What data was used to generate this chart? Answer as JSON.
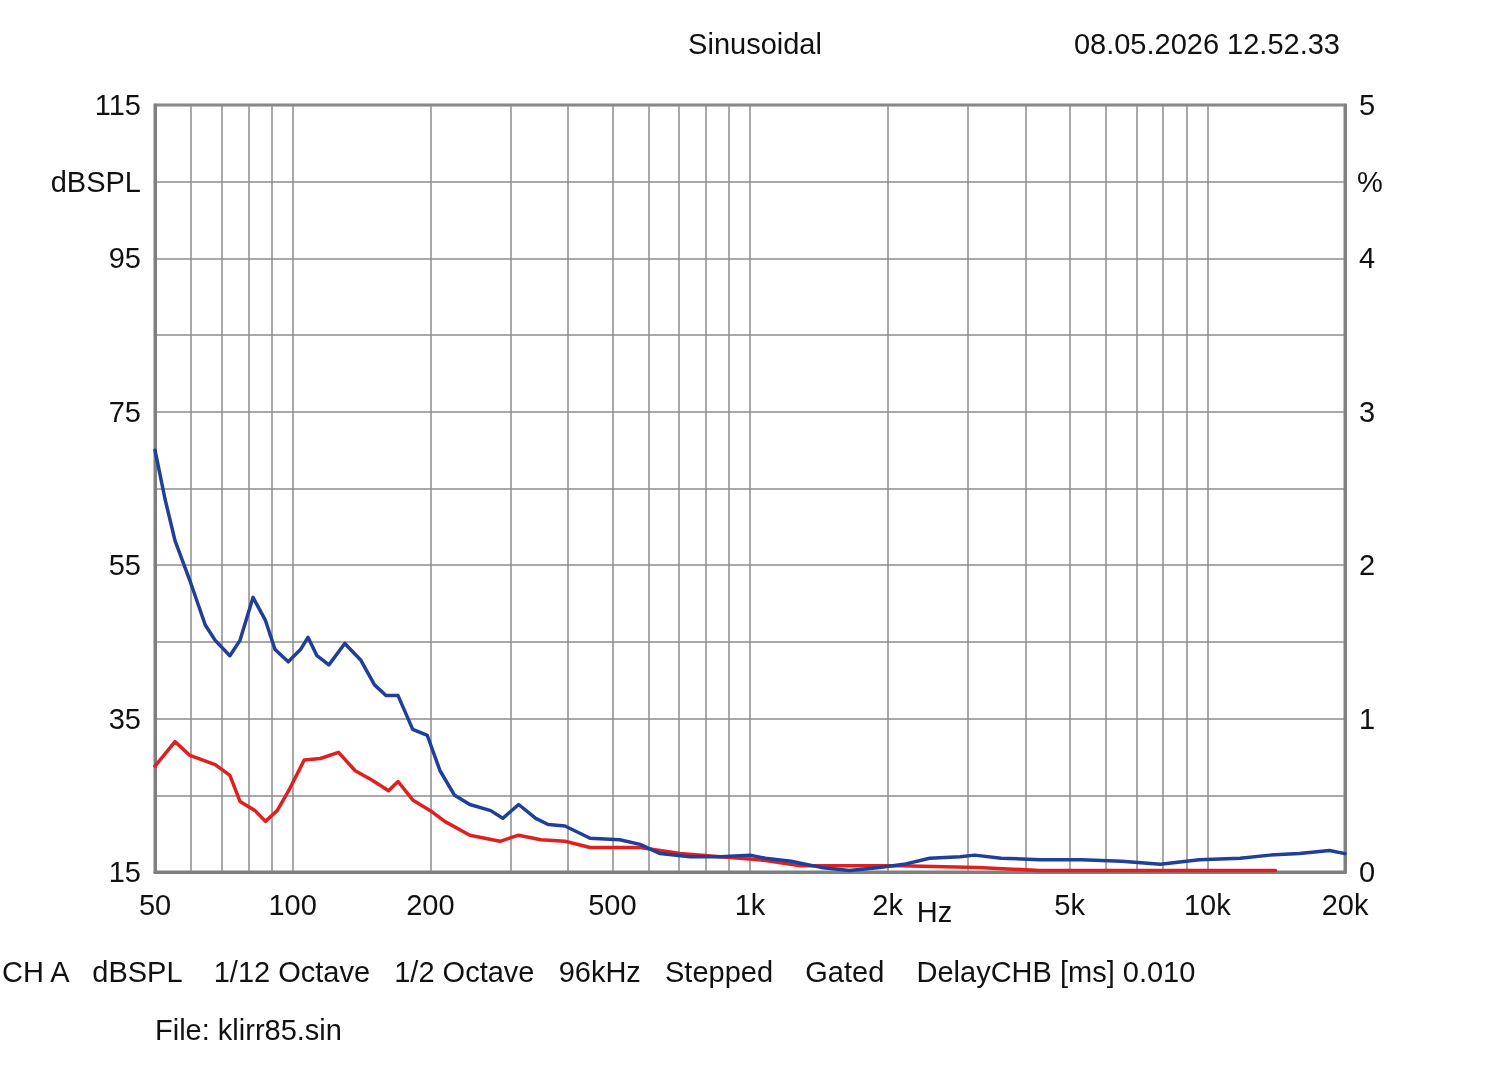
{
  "chart_data": {
    "type": "line",
    "title": "Sinusoidal",
    "subtitle": "08.05.2026 12.52.33",
    "xlabel": "Hz",
    "ylabel": "dBSPL",
    "y2label": "%",
    "annotations": [
      "CH A   dBSPL    1/12 Octave   1/2 Octave   96kHz   Stepped    Gated    DelayCHB [ms] 0.010",
      "File: klirr85.sin"
    ],
    "log": "x",
    "grid": true,
    "marker": "none",
    "line_style": "solid",
    "xlim": [
      50,
      20000
    ],
    "xticks": [
      50,
      {
        "value": 60,
        "label": null
      },
      {
        "value": 70,
        "label": null
      },
      {
        "value": 80,
        "label": null
      },
      {
        "value": 90,
        "label": null
      },
      100,
      200,
      {
        "value": 300,
        "label": null
      },
      {
        "value": 400,
        "label": null
      },
      500,
      {
        "value": 600,
        "label": null
      },
      {
        "value": 700,
        "label": null
      },
      {
        "value": 800,
        "label": null
      },
      {
        "value": 900,
        "label": null
      },
      {
        "value": 1000,
        "label": "1k"
      },
      {
        "value": 2000,
        "label": "2k"
      },
      {
        "value": 3000,
        "label": null
      },
      {
        "value": 4000,
        "label": null
      },
      {
        "value": 5000,
        "label": "5k"
      },
      {
        "value": 6000,
        "label": null
      },
      {
        "value": 7000,
        "label": null
      },
      {
        "value": 8000,
        "label": null
      },
      {
        "value": 9000,
        "label": null
      },
      {
        "value": 10000,
        "label": "10k"
      },
      {
        "value": 20000,
        "label": "20k"
      }
    ],
    "ylim": [
      15,
      115
    ],
    "yticks": [
      15,
      {
        "value": 25,
        "label": null
      },
      35,
      {
        "value": 45,
        "label": null
      },
      55,
      {
        "value": 65,
        "label": null
      },
      75,
      {
        "value": 85,
        "label": null
      },
      95,
      {
        "value": 105,
        "label": null
      },
      115
    ],
    "y2lim": [
      0,
      5
    ],
    "y2ticks": [
      0,
      1,
      2,
      3,
      4,
      5
    ],
    "series": [
      {
        "color": "#1f3f99",
        "axis": "y2",
        "x": [
          50,
          52.6,
          55.3,
          59.6,
          64.4,
          67.7,
          72.9,
          76.7,
          81.9,
          87.2,
          91.5,
          97.8,
          104,
          108,
          113,
          120,
          130,
          141,
          151,
          160,
          170,
          183,
          197,
          210,
          226,
          244,
          271,
          288,
          312,
          340,
          362,
          394,
          447,
          519,
          575,
          636,
          739,
          860,
          1000,
          1080,
          1230,
          1430,
          1650,
          1920,
          2170,
          2470,
          2880,
          3100,
          3540,
          4300,
          5300,
          6500,
          7900,
          9600,
          11800,
          13700,
          15900,
          18500,
          20000
        ],
        "values": [
          2.75,
          2.43,
          2.16,
          1.9,
          1.61,
          1.51,
          1.41,
          1.51,
          1.79,
          1.64,
          1.45,
          1.37,
          1.45,
          1.53,
          1.41,
          1.35,
          1.49,
          1.38,
          1.22,
          1.15,
          1.15,
          0.93,
          0.89,
          0.66,
          0.5,
          0.44,
          0.4,
          0.35,
          0.44,
          0.35,
          0.31,
          0.3,
          0.22,
          0.21,
          0.18,
          0.12,
          0.1,
          0.1,
          0.11,
          0.09,
          0.07,
          0.03,
          0.01,
          0.03,
          0.05,
          0.09,
          0.1,
          0.11,
          0.09,
          0.08,
          0.08,
          0.07,
          0.05,
          0.08,
          0.09,
          0.11,
          0.12,
          0.14,
          0.12
        ]
      },
      {
        "color": "#e02020",
        "axis": "y2",
        "x": [
          50,
          55.3,
          59.6,
          67.7,
          72.9,
          76.7,
          82.8,
          87.2,
          92.5,
          98,
          106,
          115,
          126,
          137,
          149,
          162,
          170,
          183,
          200,
          215,
          244,
          284,
          312,
          349,
          394,
          447,
          575,
          703,
          860,
          1050,
          1290,
          1650,
          2130,
          3150,
          4300,
          5800,
          9600,
          14100
        ],
        "values": [
          0.69,
          0.85,
          0.76,
          0.7,
          0.63,
          0.46,
          0.4,
          0.33,
          0.4,
          0.53,
          0.73,
          0.74,
          0.78,
          0.66,
          0.6,
          0.53,
          0.59,
          0.47,
          0.4,
          0.33,
          0.24,
          0.2,
          0.24,
          0.21,
          0.2,
          0.16,
          0.16,
          0.12,
          0.1,
          0.08,
          0.04,
          0.04,
          0.04,
          0.03,
          0.01,
          0.01,
          0.01,
          0.01
        ]
      }
    ]
  }
}
